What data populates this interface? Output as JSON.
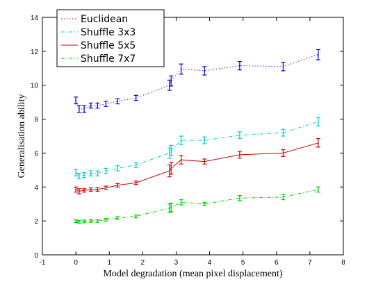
{
  "chart_data": {
    "type": "line",
    "xlabel": "Model degradation (mean pixel displacement)",
    "ylabel": "Generalisation ability",
    "xlim": [
      -1,
      8
    ],
    "ylim": [
      0,
      14
    ],
    "xticks": [
      "-1",
      "0",
      "1",
      "2",
      "3",
      "4",
      "5",
      "6",
      "7",
      "8"
    ],
    "yticks": [
      "0",
      "2",
      "4",
      "6",
      "8",
      "10",
      "12",
      "14"
    ],
    "grid": false,
    "legend_position": "top-left",
    "series": [
      {
        "name": "Euclidean",
        "color": "#0000cc",
        "line_style": "dotted",
        "x": [
          0.0,
          0.1,
          0.25,
          0.45,
          0.65,
          0.9,
          1.25,
          1.8,
          2.8,
          2.85,
          3.15,
          3.85,
          4.9,
          6.2,
          7.25
        ],
        "y": [
          9.1,
          8.6,
          8.6,
          8.8,
          8.8,
          8.9,
          9.05,
          9.25,
          10.0,
          10.25,
          10.95,
          10.85,
          11.15,
          11.1,
          11.8
        ],
        "err": [
          0.2,
          0.2,
          0.2,
          0.15,
          0.15,
          0.15,
          0.15,
          0.15,
          0.3,
          0.3,
          0.3,
          0.25,
          0.25,
          0.25,
          0.3
        ]
      },
      {
        "name": "Shuffle 3x3",
        "color": "#00cccc",
        "line_style": "dashdot",
        "x": [
          0.0,
          0.1,
          0.25,
          0.45,
          0.65,
          0.9,
          1.25,
          1.8,
          2.8,
          2.85,
          3.15,
          3.85,
          4.9,
          6.2,
          7.25
        ],
        "y": [
          4.85,
          4.65,
          4.7,
          4.8,
          4.8,
          4.95,
          5.1,
          5.3,
          6.0,
          6.15,
          6.75,
          6.75,
          7.05,
          7.2,
          7.85
        ],
        "err": [
          0.2,
          0.15,
          0.15,
          0.15,
          0.15,
          0.15,
          0.15,
          0.15,
          0.3,
          0.3,
          0.25,
          0.2,
          0.2,
          0.2,
          0.25
        ]
      },
      {
        "name": "Shuffle 5x5",
        "color": "#cc0000",
        "line_style": "solid",
        "x": [
          0.0,
          0.1,
          0.25,
          0.45,
          0.65,
          0.9,
          1.25,
          1.8,
          2.8,
          2.85,
          3.15,
          3.85,
          4.9,
          6.2,
          7.25
        ],
        "y": [
          3.85,
          3.75,
          3.8,
          3.85,
          3.85,
          3.95,
          4.1,
          4.25,
          4.95,
          5.1,
          5.6,
          5.5,
          5.9,
          6.0,
          6.6
        ],
        "err": [
          0.15,
          0.15,
          0.1,
          0.1,
          0.1,
          0.1,
          0.1,
          0.1,
          0.35,
          0.35,
          0.25,
          0.15,
          0.2,
          0.2,
          0.25
        ]
      },
      {
        "name": "Shuffle 7x7",
        "color": "#00cc00",
        "line_style": "dashdot",
        "x": [
          0.0,
          0.1,
          0.25,
          0.45,
          0.65,
          0.9,
          1.25,
          1.8,
          2.8,
          2.85,
          3.15,
          3.85,
          4.9,
          6.2,
          7.25
        ],
        "y": [
          1.98,
          1.95,
          1.97,
          2.0,
          2.0,
          2.07,
          2.17,
          2.27,
          2.75,
          2.8,
          3.1,
          3.0,
          3.35,
          3.4,
          3.85
        ],
        "err": [
          0.08,
          0.08,
          0.08,
          0.08,
          0.08,
          0.08,
          0.08,
          0.08,
          0.25,
          0.25,
          0.15,
          0.1,
          0.15,
          0.15,
          0.15
        ]
      }
    ]
  }
}
